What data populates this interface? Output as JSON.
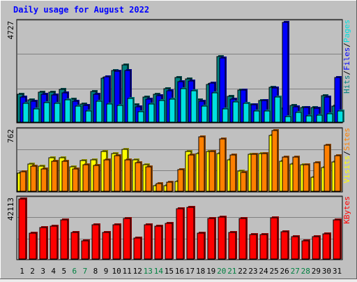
{
  "title": "Daily usage for August 2022",
  "colors": {
    "background": "#c0c0c0",
    "hits": "#008080",
    "files": "#0000ff",
    "pages": "#00e0e0",
    "visits": "#ffff00",
    "sites": "#ff8000",
    "kbytes": "#ff0000",
    "title": "#0000ff",
    "weekend_day": "#008040"
  },
  "chart_data": [
    {
      "type": "bar",
      "panel": "top",
      "y_max_label": "4727",
      "ylim": [
        0,
        4727
      ],
      "categories": [
        "1",
        "2",
        "3",
        "4",
        "5",
        "6",
        "7",
        "8",
        "9",
        "10",
        "11",
        "12",
        "13",
        "14",
        "15",
        "16",
        "17",
        "18",
        "19",
        "20",
        "21",
        "22",
        "23",
        "24",
        "25",
        "26",
        "27",
        "28",
        "29",
        "30",
        "31"
      ],
      "weekend_days": [
        "6",
        "7",
        "13",
        "14",
        "20",
        "21",
        "27",
        "28"
      ],
      "legend": [
        "Pages",
        "Files",
        "Hits"
      ],
      "series": [
        {
          "name": "Hits",
          "color": "#008080",
          "values": [
            1330,
            1090,
            1430,
            1430,
            1580,
            1110,
            880,
            1490,
            2110,
            2470,
            2730,
            840,
            1230,
            1350,
            1620,
            2140,
            2060,
            1080,
            1800,
            3130,
            1250,
            1540,
            860,
            1060,
            1660,
            650,
            810,
            730,
            720,
            1290,
            790
          ]
        },
        {
          "name": "Files",
          "color": "#0000ff",
          "values": [
            1210,
            1020,
            1340,
            1300,
            1410,
            1010,
            820,
            1340,
            2170,
            2420,
            2470,
            750,
            1130,
            1270,
            1510,
            1950,
            1960,
            1010,
            1870,
            3050,
            1130,
            1530,
            860,
            1040,
            1640,
            4727,
            770,
            720,
            700,
            1230,
            2140
          ]
        },
        {
          "name": "Pages",
          "color": "#00e0e0",
          "values": [
            920,
            660,
            950,
            930,
            1090,
            800,
            560,
            1010,
            880,
            830,
            1140,
            510,
            870,
            1040,
            1100,
            1610,
            1500,
            780,
            1400,
            670,
            1000,
            920,
            560,
            570,
            1220,
            300,
            500,
            320,
            350,
            420,
            560
          ]
        }
      ]
    },
    {
      "type": "bar",
      "panel": "middle",
      "y_max_label": "762",
      "ylim": [
        0,
        762
      ],
      "categories": [
        "1",
        "2",
        "3",
        "4",
        "5",
        "6",
        "7",
        "8",
        "9",
        "10",
        "11",
        "12",
        "13",
        "14",
        "15",
        "16",
        "17",
        "18",
        "19",
        "20",
        "21",
        "22",
        "23",
        "24",
        "25",
        "26",
        "27",
        "28",
        "29",
        "30",
        "31"
      ],
      "legend": [
        "Sites",
        "Visits"
      ],
      "series": [
        {
          "name": "Visits",
          "color": "#ffff00",
          "values": [
            230,
            350,
            320,
            420,
            420,
            310,
            390,
            400,
            500,
            480,
            530,
            400,
            340,
            80,
            80,
            130,
            500,
            480,
            500,
            480,
            400,
            260,
            470,
            480,
            700,
            380,
            350,
            340,
            180,
            300,
            370
          ]
        },
        {
          "name": "Sites",
          "color": "#ff8000",
          "values": [
            250,
            320,
            290,
            380,
            380,
            290,
            340,
            330,
            400,
            450,
            400,
            360,
            310,
            100,
            120,
            280,
            460,
            680,
            500,
            660,
            460,
            240,
            470,
            480,
            762,
            430,
            430,
            340,
            360,
            580,
            450
          ]
        }
      ]
    },
    {
      "type": "bar",
      "panel": "bottom",
      "y_max_label": "42113",
      "ylim": [
        0,
        42113
      ],
      "categories": [
        "1",
        "2",
        "3",
        "4",
        "5",
        "6",
        "7",
        "8",
        "9",
        "10",
        "11",
        "12",
        "13",
        "14",
        "15",
        "16",
        "17",
        "18",
        "19",
        "20",
        "21",
        "22",
        "23",
        "24",
        "25",
        "26",
        "27",
        "28",
        "29",
        "30",
        "31"
      ],
      "legend": [
        "KBytes"
      ],
      "series": [
        {
          "name": "KBytes",
          "color": "#ff0000",
          "values": [
            42113,
            18500,
            22200,
            23000,
            27800,
            19000,
            13100,
            24100,
            19000,
            24100,
            28500,
            14800,
            24100,
            23000,
            25100,
            35100,
            36500,
            18500,
            28600,
            29500,
            19100,
            28500,
            17500,
            17500,
            29000,
            19500,
            15900,
            13300,
            15900,
            17900,
            27800
          ]
        }
      ]
    }
  ]
}
